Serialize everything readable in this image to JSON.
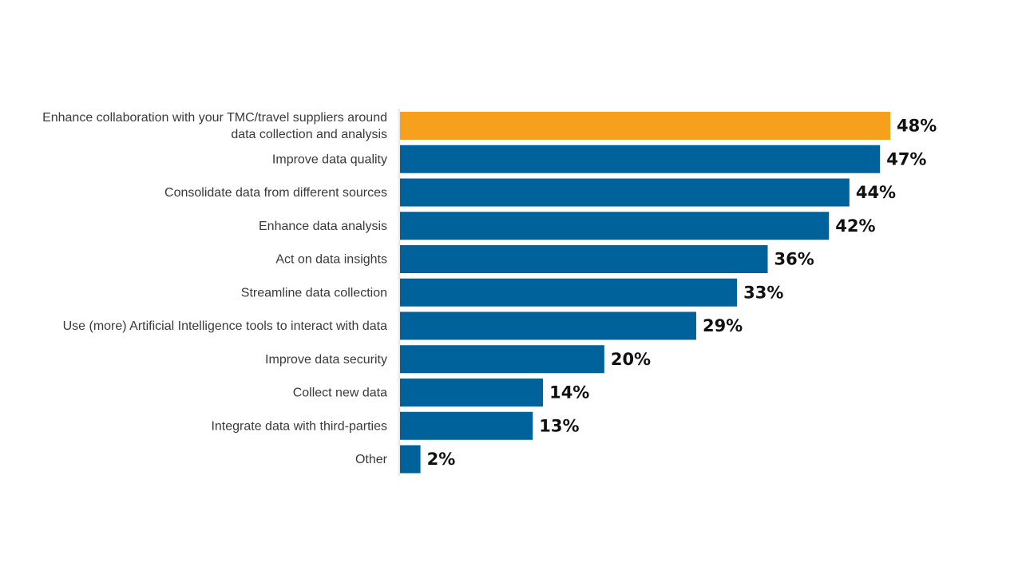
{
  "chart_data": {
    "type": "bar",
    "orientation": "horizontal",
    "title": "",
    "xlabel": "",
    "ylabel": "",
    "grid": false,
    "legend": "none",
    "value_suffix": "%",
    "xlim": [
      0,
      50
    ],
    "categories": [
      [
        "Enhance collaboration with your TMC/travel suppliers around",
        "data collection and analysis"
      ],
      [
        "Improve data quality"
      ],
      [
        "Consolidate data from different sources"
      ],
      [
        "Enhance data analysis"
      ],
      [
        "Act on data insights"
      ],
      [
        "Streamline data collection"
      ],
      [
        "Use (more) Artificial Intelligence tools to interact with data"
      ],
      [
        "Improve data security"
      ],
      [
        "Collect new data"
      ],
      [
        "Integrate data with third-parties"
      ],
      [
        "Other"
      ]
    ],
    "values": [
      48,
      47,
      44,
      42,
      36,
      33,
      29,
      20,
      14,
      13,
      2
    ],
    "value_labels": [
      "48%",
      "47%",
      "44%",
      "42%",
      "36%",
      "33%",
      "29%",
      "20%",
      "14%",
      "13%",
      "2%"
    ],
    "highlight_index": 0,
    "colors": {
      "bar": "#00629b",
      "highlight": "#f7a01e",
      "axis": "#d0d0d0"
    }
  }
}
